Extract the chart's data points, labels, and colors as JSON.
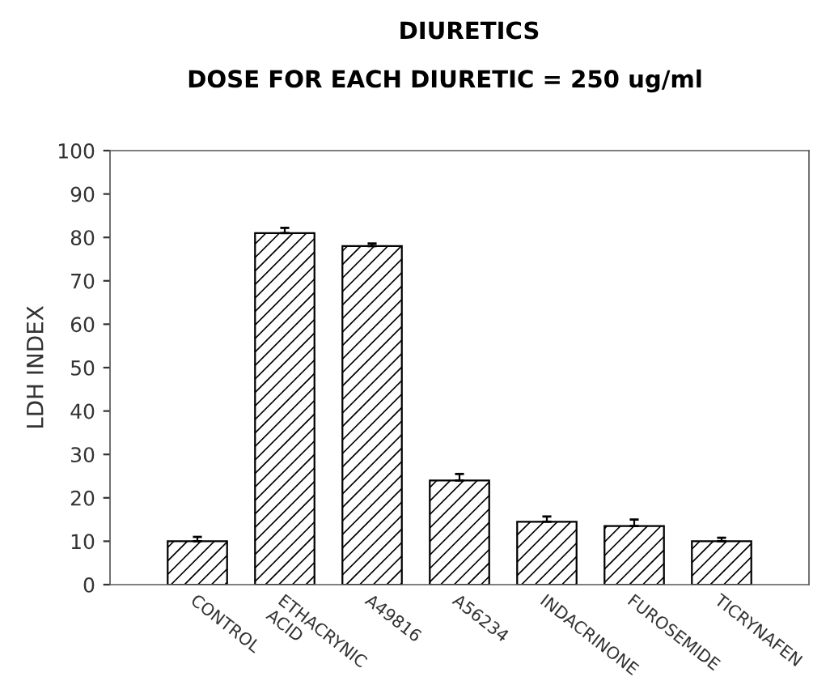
{
  "chart_data": {
    "type": "bar",
    "title": "DIURETICS",
    "subtitle": "DOSE FOR EACH DIURETIC = 250 ug/ml",
    "ylabel": "LDH INDEX",
    "categories": [
      "CONTROL",
      "ETHACRYNIC\nACID",
      "A49816",
      "A56234",
      "INDACRINONE",
      "FUROSEMIDE",
      "TICRYNAFEN"
    ],
    "values": [
      10,
      81,
      78,
      24,
      14.5,
      13.5,
      10
    ],
    "errors": [
      1,
      1.2,
      0.6,
      1.5,
      1.2,
      1.5,
      0.8
    ],
    "color": "#000000",
    "ylim": [
      0,
      100
    ],
    "yticks": [
      0,
      10,
      20,
      30,
      40,
      50,
      60,
      70,
      80,
      90,
      100
    ],
    "grid": false
  }
}
